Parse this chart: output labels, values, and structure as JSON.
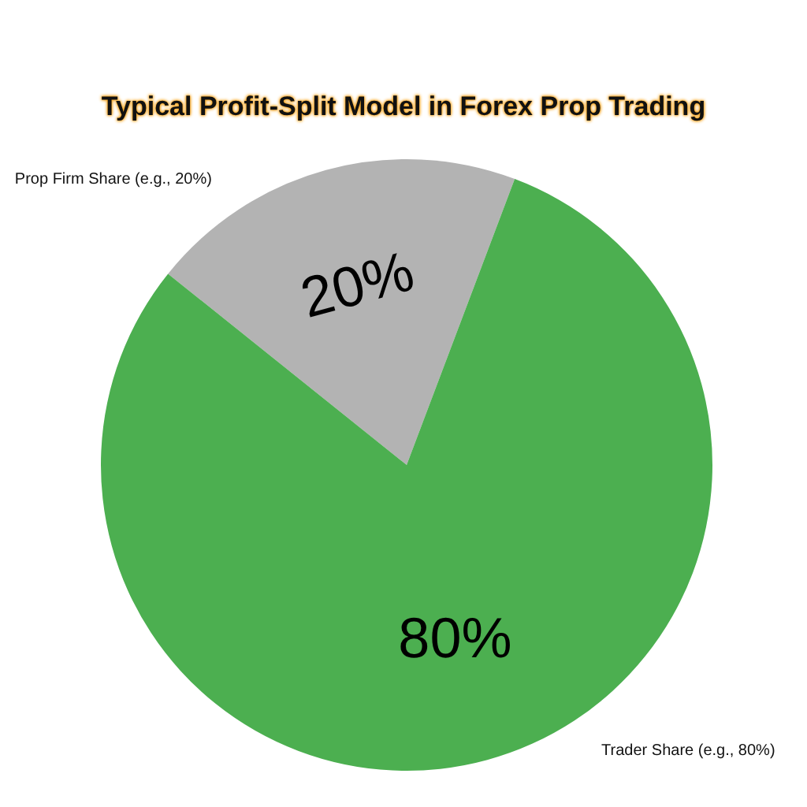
{
  "chart_data": {
    "type": "pie",
    "title": "Typical Profit-Split Model in Forex Prop Trading",
    "categories": [
      "Prop Firm Share (e.g., 20%)",
      "Trader Share (e.g., 80%)"
    ],
    "values": [
      20,
      80
    ],
    "colors": [
      "#b3b3b3",
      "#4caf50"
    ],
    "value_labels": [
      "20%",
      "80%"
    ]
  }
}
